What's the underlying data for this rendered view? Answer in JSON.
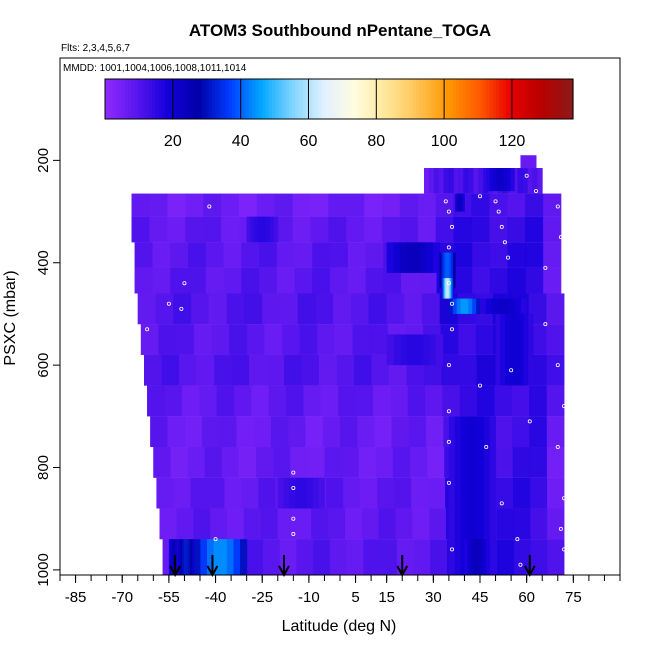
{
  "chart_data": {
    "type": "heatmap",
    "title": "ATOM3 Southbound nPentane_TOGA",
    "flights_label": "Flts: 2,3,4,5,6,7",
    "mmdd_label": "MMDD: 1001,1004,1006,1008,1011,1014",
    "xlabel": "Latitude (deg N)",
    "ylabel": "PSXC (mbar)",
    "xlim": [
      -90,
      90
    ],
    "ylim": [
      1010,
      0
    ],
    "x_ticks": [
      -85,
      -70,
      -55,
      -40,
      -25,
      -10,
      5,
      15,
      30,
      45,
      60,
      75
    ],
    "x_tick_labels": [
      "-85",
      "-70",
      "-55",
      "-40",
      "-25",
      "-10",
      "5",
      "15",
      "30",
      "45",
      "60",
      "75"
    ],
    "y_ticks": [
      200,
      400,
      600,
      800,
      1000
    ],
    "y_tick_labels": [
      "200",
      "400",
      "600",
      "800",
      "1000"
    ],
    "colorbar": {
      "min": 0,
      "max": 138,
      "ticks": [
        20,
        40,
        60,
        80,
        100,
        120
      ],
      "tick_labels": [
        "20",
        "40",
        "60",
        "80",
        "100",
        "120"
      ],
      "colors": [
        "#8f2bff",
        "#5a16ee",
        "#1400dc",
        "#0000a8",
        "#003cff",
        "#00a6ff",
        "#7fd4ff",
        "#e0f0ff",
        "#fffde0",
        "#ffe79a",
        "#ffc455",
        "#ff9700",
        "#ff5a00",
        "#e80000",
        "#b80000",
        "#8c1a1a"
      ]
    },
    "background_value": 6,
    "layers": [
      {
        "p_top": 215,
        "p_bot": 265,
        "lat_min": 27,
        "lat_max": 65,
        "value": 6
      },
      {
        "p_top": 265,
        "p_bot": 310,
        "lat_min": -67,
        "lat_max": 71,
        "value": 6
      },
      {
        "p_top": 310,
        "p_bot": 360,
        "lat_min": -67,
        "lat_max": 71,
        "value": 8
      },
      {
        "p_top": 360,
        "p_bot": 410,
        "lat_min": -66,
        "lat_max": 71,
        "value": 9
      },
      {
        "p_top": 410,
        "p_bot": 460,
        "lat_min": -66,
        "lat_max": 71,
        "value": 9
      },
      {
        "p_top": 460,
        "p_bot": 520,
        "lat_min": -65,
        "lat_max": 72,
        "value": 10
      },
      {
        "p_top": 520,
        "p_bot": 580,
        "lat_min": -64,
        "lat_max": 72,
        "value": 9
      },
      {
        "p_top": 580,
        "p_bot": 640,
        "lat_min": -63,
        "lat_max": 72,
        "value": 10
      },
      {
        "p_top": 640,
        "p_bot": 700,
        "lat_min": -62,
        "lat_max": 72,
        "value": 8
      },
      {
        "p_top": 700,
        "p_bot": 760,
        "lat_min": -61,
        "lat_max": 72,
        "value": 7
      },
      {
        "p_top": 760,
        "p_bot": 820,
        "lat_min": -60,
        "lat_max": 72,
        "value": 7
      },
      {
        "p_top": 820,
        "p_bot": 880,
        "lat_min": -59,
        "lat_max": 72,
        "value": 8
      },
      {
        "p_top": 880,
        "p_bot": 940,
        "lat_min": -58,
        "lat_max": 72,
        "value": 8
      },
      {
        "p_top": 940,
        "p_bot": 1010,
        "lat_min": -57,
        "lat_max": 72,
        "value": 9
      }
    ],
    "features": [
      {
        "p_top": 190,
        "p_bot": 215,
        "lat_min": 58,
        "lat_max": 63,
        "value": 7
      },
      {
        "p_top": 360,
        "p_bot": 420,
        "lat_min": 15,
        "lat_max": 32,
        "value": 24
      },
      {
        "p_top": 380,
        "p_bot": 450,
        "lat_min": 32,
        "lat_max": 37,
        "value": 40
      },
      {
        "p_top": 430,
        "p_bot": 470,
        "lat_min": 33,
        "lat_max": 36,
        "value": 62
      },
      {
        "p_top": 310,
        "p_bot": 360,
        "lat_min": -30,
        "lat_max": -20,
        "value": 16
      },
      {
        "p_top": 470,
        "p_bot": 500,
        "lat_min": 35,
        "lat_max": 45,
        "value": 45
      },
      {
        "p_top": 470,
        "p_bot": 500,
        "lat_min": 45,
        "lat_max": 60,
        "value": 22
      },
      {
        "p_top": 265,
        "p_bot": 300,
        "lat_min": 37,
        "lat_max": 40,
        "value": 24
      },
      {
        "p_top": 215,
        "p_bot": 260,
        "lat_min": 47,
        "lat_max": 56,
        "value": 22
      },
      {
        "p_top": 500,
        "p_bot": 640,
        "lat_min": 50,
        "lat_max": 62,
        "value": 20
      },
      {
        "p_top": 540,
        "p_bot": 600,
        "lat_min": 15,
        "lat_max": 33,
        "value": 16
      },
      {
        "p_top": 820,
        "p_bot": 880,
        "lat_min": -20,
        "lat_max": -5,
        "value": 15
      },
      {
        "p_top": 700,
        "p_bot": 1010,
        "lat_min": 35,
        "lat_max": 50,
        "value": 20
      },
      {
        "p_top": 940,
        "p_bot": 1010,
        "lat_min": -55,
        "lat_max": -52,
        "value": 25
      },
      {
        "p_top": 940,
        "p_bot": 1010,
        "lat_min": -47,
        "lat_max": -30,
        "value": 44
      },
      {
        "p_top": 940,
        "p_bot": 1010,
        "lat_min": -52,
        "lat_max": -47,
        "value": 32
      },
      {
        "p_top": 940,
        "p_bot": 1010,
        "lat_min": 40,
        "lat_max": 48,
        "value": 24
      }
    ],
    "sample_points": [
      {
        "lat": -42,
        "p": 290
      },
      {
        "lat": -55,
        "p": 480
      },
      {
        "lat": -50,
        "p": 440
      },
      {
        "lat": -51,
        "p": 490
      },
      {
        "lat": -40,
        "p": 940
      },
      {
        "lat": -15,
        "p": 810
      },
      {
        "lat": -15,
        "p": 840
      },
      {
        "lat": -15,
        "p": 900
      },
      {
        "lat": -15,
        "p": 930
      },
      {
        "lat": -62,
        "p": 530
      },
      {
        "lat": 34,
        "p": 280
      },
      {
        "lat": 35,
        "p": 300
      },
      {
        "lat": 36,
        "p": 330
      },
      {
        "lat": 35,
        "p": 370
      },
      {
        "lat": 35,
        "p": 440
      },
      {
        "lat": 36,
        "p": 480
      },
      {
        "lat": 36,
        "p": 530
      },
      {
        "lat": 35,
        "p": 600
      },
      {
        "lat": 35,
        "p": 690
      },
      {
        "lat": 35,
        "p": 750
      },
      {
        "lat": 35,
        "p": 830
      },
      {
        "lat": 36,
        "p": 960
      },
      {
        "lat": 45,
        "p": 270
      },
      {
        "lat": 50,
        "p": 280
      },
      {
        "lat": 51,
        "p": 300
      },
      {
        "lat": 52,
        "p": 330
      },
      {
        "lat": 53,
        "p": 360
      },
      {
        "lat": 54,
        "p": 390
      },
      {
        "lat": 60,
        "p": 230
      },
      {
        "lat": 63,
        "p": 260
      },
      {
        "lat": 70,
        "p": 290
      },
      {
        "lat": 71,
        "p": 350
      },
      {
        "lat": 66,
        "p": 410
      },
      {
        "lat": 66,
        "p": 520
      },
      {
        "lat": 70,
        "p": 600
      },
      {
        "lat": 72,
        "p": 680
      },
      {
        "lat": 70,
        "p": 760
      },
      {
        "lat": 72,
        "p": 860
      },
      {
        "lat": 71,
        "p": 920
      },
      {
        "lat": 72,
        "p": 960
      },
      {
        "lat": 45,
        "p": 640
      },
      {
        "lat": 47,
        "p": 760
      },
      {
        "lat": 52,
        "p": 870
      },
      {
        "lat": 57,
        "p": 940
      },
      {
        "lat": 58,
        "p": 990
      },
      {
        "lat": 61,
        "p": 710
      },
      {
        "lat": 55,
        "p": 610
      }
    ],
    "arrows": [
      -53,
      -41,
      -18,
      20,
      61
    ]
  }
}
